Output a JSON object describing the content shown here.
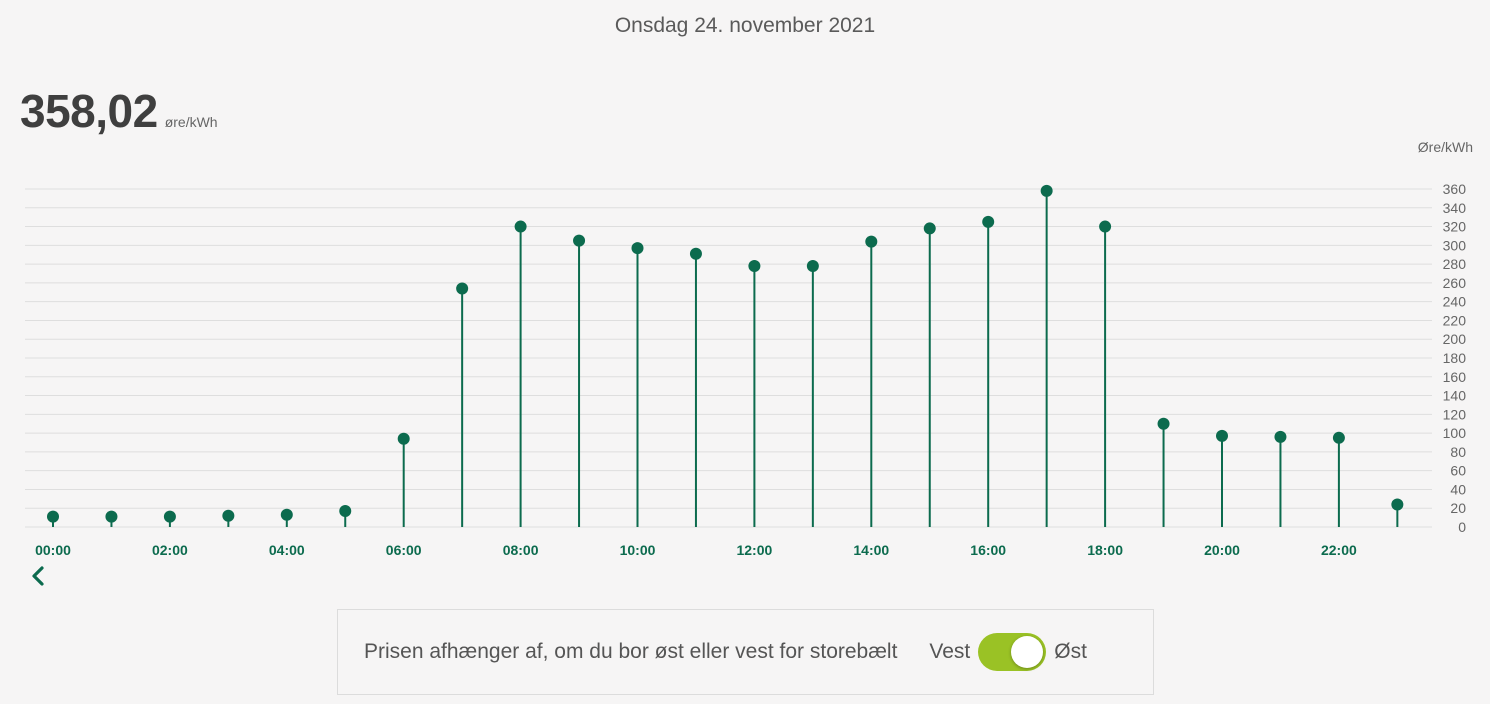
{
  "header": {
    "date": "Onsdag 24. november 2021"
  },
  "current_price": {
    "value": "358,02",
    "unit": "øre/kWh"
  },
  "chart_data": {
    "type": "lollipop",
    "y_unit_label": "Øre/kWh",
    "ylim": [
      0,
      360
    ],
    "y_ticks": [
      0,
      20,
      40,
      60,
      80,
      100,
      120,
      140,
      160,
      180,
      200,
      220,
      240,
      260,
      280,
      300,
      320,
      340,
      360
    ],
    "grid": true,
    "x_tick_labels": [
      "00:00",
      "02:00",
      "04:00",
      "06:00",
      "08:00",
      "10:00",
      "12:00",
      "14:00",
      "16:00",
      "18:00",
      "20:00",
      "22:00"
    ],
    "hours": [
      "00:00",
      "01:00",
      "02:00",
      "03:00",
      "04:00",
      "05:00",
      "06:00",
      "07:00",
      "08:00",
      "09:00",
      "10:00",
      "11:00",
      "12:00",
      "13:00",
      "14:00",
      "15:00",
      "16:00",
      "17:00",
      "18:00",
      "19:00",
      "20:00",
      "21:00",
      "22:00",
      "23:00"
    ],
    "values": [
      11,
      11,
      11,
      12,
      13,
      17,
      94,
      254,
      320,
      305,
      297,
      291,
      278,
      278,
      304,
      318,
      325,
      358.02,
      320,
      110,
      97,
      96,
      95,
      24
    ],
    "color": "#0c6b4e"
  },
  "toggle": {
    "text": "Prisen afhænger af, om du bor øst eller vest for storebælt",
    "left_label": "Vest",
    "right_label": "Øst",
    "selected": "Øst",
    "color": "#9ac225"
  },
  "icons": {
    "prev": "chevron-left-icon"
  }
}
